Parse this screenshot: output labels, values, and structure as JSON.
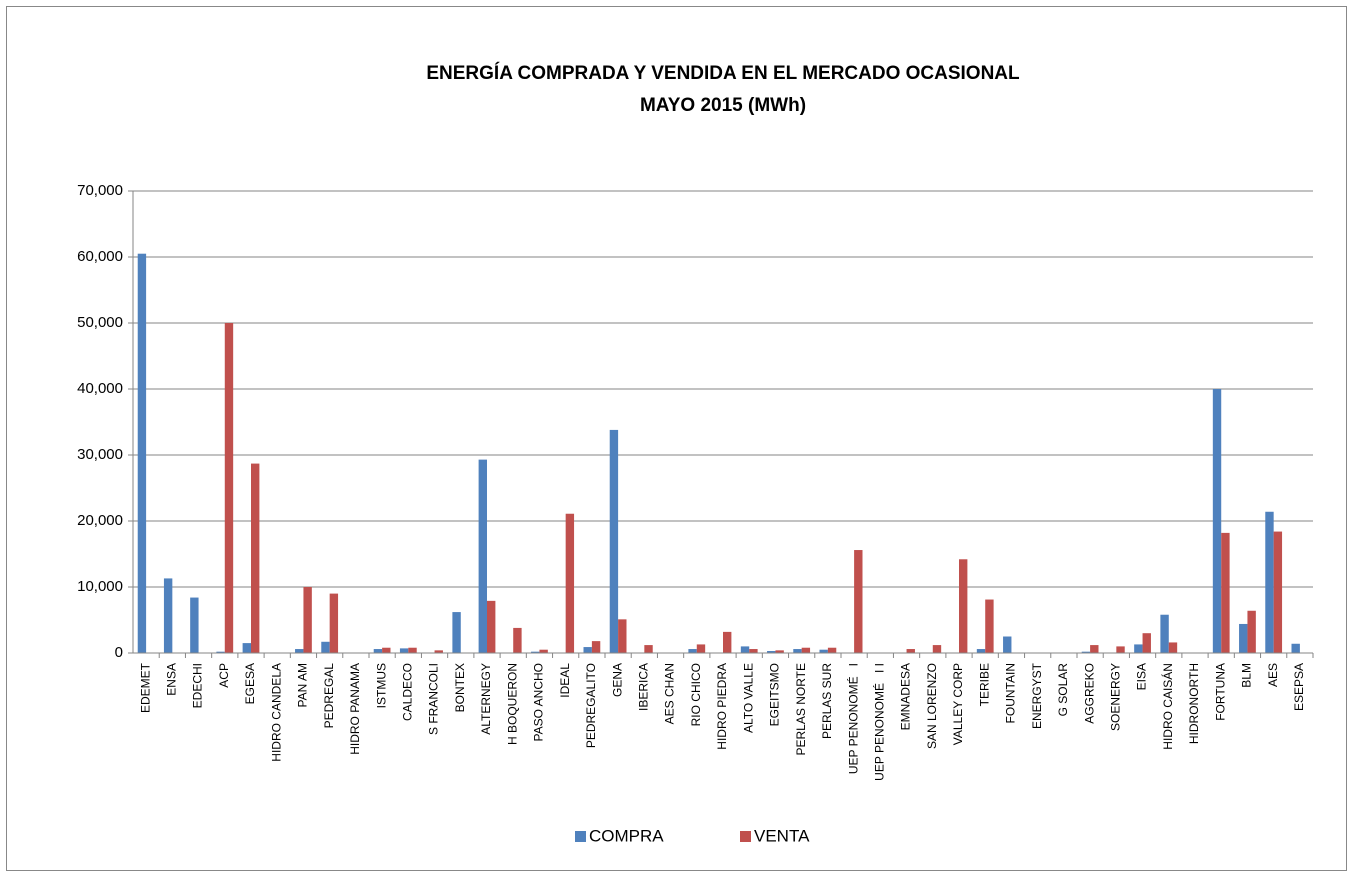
{
  "chart_data": {
    "type": "bar",
    "title": "ENERGÍA  COMPRADA  Y  VENDIDA  EN  EL  MERCADO  OCASIONAL",
    "subtitle": "MAYO   2015  (MWh)",
    "categories": [
      "EDEMET",
      "ENSA",
      "EDECHI",
      "ACP",
      "EGESA",
      "HIDRO CANDELA",
      "PAN AM",
      "PEDREGAL",
      "HIDRO PANAMA",
      "ISTMUS",
      "CALDECO",
      "S FRANCOLI",
      "BONTEX",
      "ALTERNEGY",
      "H BOQUERON",
      "PASO ANCHO",
      "IDEAL",
      "PEDREGALITO",
      "GENA",
      "IBERICA",
      "AES CHAN",
      "RIO CHICO",
      "HIDRO PIEDRA",
      "ALTO VALLE",
      "EGEITSMO",
      "PERLAS NORTE",
      "PERLAS SUR",
      "UEP PENONOMÉ   I",
      "UEP PENONOMÉ   I I",
      "EMNADESA",
      "SAN LORENZO",
      "VALLEY CORP",
      "TERIBE",
      "FOUNTAIN",
      "ENERGYST",
      "G SOLAR",
      "AGGREKO",
      "SOENERGY",
      "EISA",
      "HIDRO CAISÁN",
      "HIDRONORTH",
      "FORTUNA",
      "BLM",
      "AES",
      "ESEPSA"
    ],
    "series": [
      {
        "name": "COMPRA",
        "color": "#4f81bd",
        "values": [
          60500,
          11300,
          8400,
          200,
          1500,
          0,
          600,
          1700,
          0,
          600,
          700,
          0,
          6200,
          29300,
          0,
          200,
          0,
          900,
          33800,
          0,
          0,
          600,
          0,
          1000,
          300,
          600,
          500,
          0,
          0,
          0,
          0,
          0,
          600,
          2500,
          0,
          0,
          200,
          0,
          1300,
          5800,
          0,
          40000,
          4400,
          21400,
          1400
        ]
      },
      {
        "name": "VENTA",
        "color": "#c0504d",
        "values": [
          0,
          0,
          0,
          50000,
          28700,
          0,
          10000,
          9000,
          0,
          800,
          800,
          400,
          0,
          7900,
          3800,
          500,
          21100,
          1800,
          5100,
          1200,
          0,
          1300,
          3200,
          600,
          400,
          800,
          800,
          15600,
          0,
          600,
          1200,
          14200,
          8100,
          0,
          0,
          0,
          1200,
          1000,
          3000,
          1600,
          0,
          18200,
          6400,
          18400,
          0
        ]
      }
    ],
    "ylim": [
      0,
      70000
    ],
    "yticks": [
      0,
      {
        "value": 10000,
        "label": "10,000"
      },
      {
        "value": 20000,
        "label": "20,000"
      },
      {
        "value": 30000,
        "label": "30,000"
      },
      {
        "value": 40000,
        "label": "40,000"
      },
      {
        "value": 50000,
        "label": "50,000"
      },
      {
        "value": 60000,
        "label": "60,000"
      },
      {
        "value": 70000,
        "label": "70,000"
      }
    ],
    "grid": true,
    "legend": "bottom"
  }
}
